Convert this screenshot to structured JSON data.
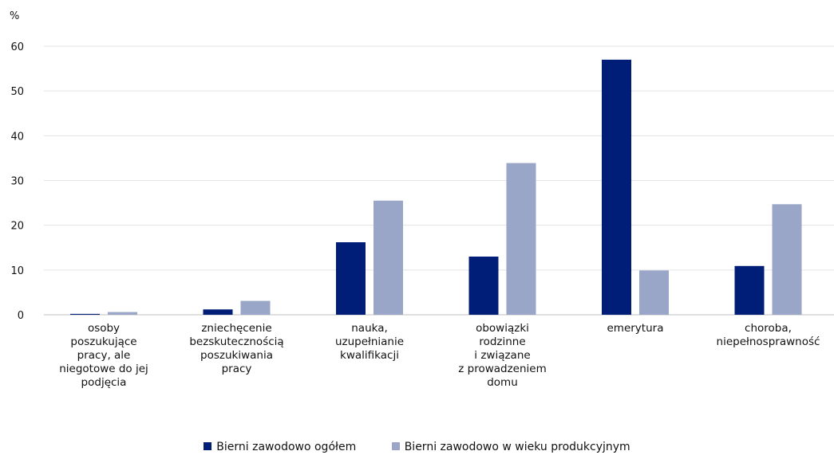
{
  "chart_data": {
    "type": "bar",
    "unit_label": "%",
    "ylim": [
      0,
      60
    ],
    "y_ticks": [
      "0",
      "10",
      "20",
      "30",
      "40",
      "50",
      "60"
    ],
    "grid": true,
    "legend_position": "bottom",
    "categories": [
      "osoby\nposzukujące\npracy, ale\nniegotowe do jej\npodjęcia",
      "zniechęcenie\nbezskutecznością\nposzukiwania\npracy",
      "nauka,\nuzupełnianie\nkwalifikacji",
      "obowiązki\nrodzinne\ni związane\nz prowadzeniem\ndomu",
      "emerytura",
      "choroba,\nniepełnosprawność"
    ],
    "series": [
      {
        "name": "Bierni zawodowo ogółem",
        "color": "#001e78",
        "values": [
          0.2,
          1.2,
          16.2,
          13.0,
          57.0,
          10.9
        ]
      },
      {
        "name": "Bierni zawodowo w wieku produkcyjnym",
        "color": "#9aa6c8",
        "values": [
          0.6,
          3.1,
          25.5,
          33.9,
          9.9,
          24.7
        ]
      }
    ]
  }
}
